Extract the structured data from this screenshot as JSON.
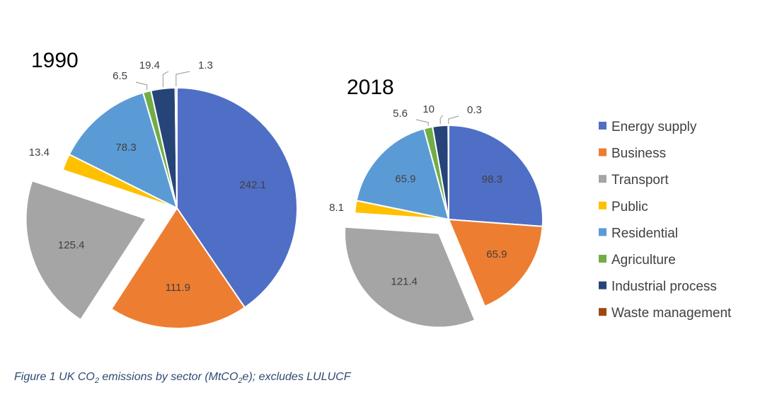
{
  "colors": {
    "Energy supply": "#4f6ec5",
    "Business": "#ed7d31",
    "Transport": "#a5a5a5",
    "Public": "#ffc000",
    "Residential": "#5b9bd5",
    "Agriculture": "#70ad47",
    "Industrial process": "#264478",
    "Waste management": "#9e480e"
  },
  "legend": [
    "Energy supply",
    "Business",
    "Transport",
    "Public",
    "Residential",
    "Agriculture",
    "Industrial process",
    "Waste management"
  ],
  "caption": {
    "prefix": "Figure 1 UK CO",
    "sub1": "2",
    "middle": " emissions by sector (MtCO",
    "sub2": "2",
    "suffix": "e); excludes LULUCF"
  },
  "chart_data": [
    {
      "type": "pie",
      "title": "1990",
      "exploded": "Transport",
      "slices": [
        {
          "label": "Energy supply",
          "value": 242.1,
          "value_label": "242.1"
        },
        {
          "label": "Business",
          "value": 111.9,
          "value_label": "111.9"
        },
        {
          "label": "Transport",
          "value": 125.4,
          "value_label": "125.4"
        },
        {
          "label": "Public",
          "value": 13.4,
          "value_label": "13.4"
        },
        {
          "label": "Residential",
          "value": 78.3,
          "value_label": "78.3"
        },
        {
          "label": "Agriculture",
          "value": 6.5,
          "value_label": "6.5"
        },
        {
          "label": "Industrial process",
          "value": 19.4,
          "value_label": "19.4"
        },
        {
          "label": "Waste management",
          "value": 1.3,
          "value_label": "1.3"
        }
      ]
    },
    {
      "type": "pie",
      "title": "2018",
      "exploded": "Transport",
      "slices": [
        {
          "label": "Energy supply",
          "value": 98.3,
          "value_label": "98.3"
        },
        {
          "label": "Business",
          "value": 65.9,
          "value_label": "65.9"
        },
        {
          "label": "Transport",
          "value": 121.4,
          "value_label": "121.4"
        },
        {
          "label": "Public",
          "value": 8.1,
          "value_label": "8.1"
        },
        {
          "label": "Residential",
          "value": 65.9,
          "value_label": "65.9"
        },
        {
          "label": "Agriculture",
          "value": 5.6,
          "value_label": "5.6"
        },
        {
          "label": "Industrial process",
          "value": 10,
          "value_label": "10"
        },
        {
          "label": "Waste management",
          "value": 0.3,
          "value_label": "0.3"
        }
      ]
    }
  ]
}
